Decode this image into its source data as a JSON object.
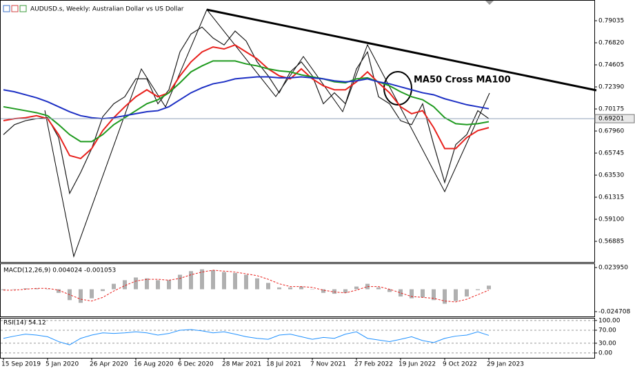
{
  "chart_data": [
    {
      "type": "price",
      "title": "AUDUSD.s, Weekly:  Australian Dollar vs US Dollar",
      "annotation": "MA50 Cross MA100",
      "last_price": 0.69201,
      "categories": [
        "15 Sep 2019",
        null,
        null,
        null,
        "5 Jan 2020",
        null,
        null,
        null,
        "26 Apr 2020",
        null,
        null,
        null,
        "16 Aug 2020",
        null,
        null,
        null,
        "6 Dec 2020",
        null,
        null,
        null,
        "28 Mar 2021",
        null,
        null,
        null,
        "18 Jul 2021",
        null,
        null,
        null,
        "7 Nov 2021",
        null,
        null,
        null,
        "27 Feb 2022",
        null,
        null,
        null,
        "19 Jun 2022",
        null,
        null,
        null,
        "9 Oct 2022",
        null,
        null,
        null,
        "29 Jan 2023"
      ],
      "series": [
        {
          "color": "#1a1a1a",
          "width": 1.2,
          "values": [
            0.676,
            0.686,
            0.69,
            0.692,
            0.693,
            0.673,
            0.617,
            0.638,
            0.662,
            0.694,
            0.707,
            0.714,
            0.732,
            0.732,
            0.707,
            0.721,
            0.759,
            0.777,
            0.784,
            0.773,
            0.766,
            0.78,
            0.77,
            0.749,
            0.735,
            0.718,
            0.739,
            0.749,
            0.735,
            0.707,
            0.718,
            0.707,
            0.742,
            0.759,
            0.714,
            0.707,
            0.69,
            0.686,
            0.707,
            0.666,
            0.628,
            0.666,
            0.676,
            0.7,
            0.692
          ]
        },
        {
          "color": "#e8201c",
          "width": 2,
          "values": [
            0.69,
            0.692,
            0.693,
            0.695,
            0.692,
            0.676,
            0.655,
            0.652,
            0.662,
            0.68,
            0.693,
            0.704,
            0.714,
            0.721,
            0.714,
            0.718,
            0.735,
            0.749,
            0.759,
            0.764,
            0.762,
            0.766,
            0.759,
            0.752,
            0.742,
            0.735,
            0.732,
            0.742,
            0.732,
            0.725,
            0.721,
            0.721,
            0.729,
            0.739,
            0.728,
            0.718,
            0.704,
            0.697,
            0.7,
            0.683,
            0.662,
            0.662,
            0.673,
            0.68,
            0.683
          ]
        },
        {
          "color": "#1e9a1e",
          "width": 2,
          "values": [
            0.704,
            0.702,
            0.7,
            0.698,
            0.695,
            0.686,
            0.676,
            0.669,
            0.669,
            0.676,
            0.686,
            0.693,
            0.7,
            0.707,
            0.711,
            0.718,
            0.728,
            0.739,
            0.745,
            0.75,
            0.75,
            0.75,
            0.747,
            0.745,
            0.742,
            0.74,
            0.739,
            0.736,
            0.734,
            0.732,
            0.729,
            0.728,
            0.732,
            0.733,
            0.729,
            0.725,
            0.719,
            0.714,
            0.711,
            0.704,
            0.693,
            0.687,
            0.686,
            0.687,
            0.689
          ]
        },
        {
          "color": "#1c2fc4",
          "width": 2,
          "values": [
            0.721,
            0.719,
            0.716,
            0.713,
            0.709,
            0.704,
            0.699,
            0.695,
            0.693,
            0.692,
            0.693,
            0.695,
            0.697,
            0.699,
            0.7,
            0.704,
            0.711,
            0.718,
            0.723,
            0.727,
            0.729,
            0.732,
            0.733,
            0.734,
            0.734,
            0.733,
            0.733,
            0.734,
            0.733,
            0.732,
            0.73,
            0.729,
            0.73,
            0.732,
            0.729,
            0.727,
            0.724,
            0.721,
            0.718,
            0.716,
            0.712,
            0.709,
            0.706,
            0.704,
            0.702
          ]
        }
      ],
      "ylim": [
        0.5481,
        0.8077
      ],
      "yticks": [
        0.79035,
        {
          "value": 0.7682,
          "label": "0.76820"
        },
        0.74605,
        {
          "value": 0.7239,
          "label": "0.72390"
        },
        0.70175,
        {
          "value": 0.6796,
          "label": "0.67960"
        },
        0.65745,
        {
          "value": 0.6353,
          "label": "0.63530"
        },
        0.61315,
        {
          "value": 0.591,
          "label": "0.59100"
        },
        0.56885
      ]
    },
    {
      "type": "macd",
      "title": "MACD(12,26,9) 0.004024 -0.001053",
      "series": [
        {
          "color": "#b0b0b0",
          "style": "histogram",
          "values": [
            -0.001,
            0.0,
            0.001,
            0.001,
            0.0,
            -0.004,
            -0.012,
            -0.015,
            -0.01,
            -0.002,
            0.006,
            0.01,
            0.013,
            0.012,
            0.01,
            0.01,
            0.016,
            0.02,
            0.022,
            0.021,
            0.019,
            0.018,
            0.016,
            0.012,
            0.007,
            0.002,
            0.002,
            0.003,
            0.0,
            -0.004,
            -0.005,
            -0.004,
            0.003,
            0.006,
            0.002,
            -0.003,
            -0.008,
            -0.01,
            -0.009,
            -0.012,
            -0.016,
            -0.013,
            -0.008,
            -0.001,
            0.004
          ]
        },
        {
          "color": "#e8201c",
          "style": "dashed",
          "values": [
            -0.001,
            -0.001,
            0.0,
            0.001,
            0.001,
            -0.001,
            -0.006,
            -0.011,
            -0.013,
            -0.009,
            -0.002,
            0.004,
            0.009,
            0.011,
            0.011,
            0.01,
            0.012,
            0.016,
            0.019,
            0.021,
            0.02,
            0.019,
            0.017,
            0.015,
            0.011,
            0.006,
            0.003,
            0.003,
            0.002,
            -0.001,
            -0.003,
            -0.004,
            -0.001,
            0.003,
            0.003,
            0.0,
            -0.004,
            -0.008,
            -0.009,
            -0.01,
            -0.013,
            -0.014,
            -0.011,
            -0.006,
            -0.001
          ]
        }
      ],
      "ylim": [
        -0.0308,
        0.0278
      ],
      "yticks": [
        {
          "value": 0.02395,
          "label": "0.023950"
        },
        {
          "value": -0.024708,
          "label": "-0.024708"
        }
      ]
    },
    {
      "type": "rsi",
      "title": "RSI(14) 54.12",
      "grid": "dashed",
      "series": [
        {
          "color": "#1e90ff",
          "style": "line",
          "values": [
            45,
            52,
            58,
            55,
            50,
            35,
            25,
            45,
            55,
            62,
            60,
            62,
            65,
            62,
            55,
            60,
            70,
            72,
            68,
            62,
            65,
            58,
            50,
            45,
            42,
            55,
            58,
            50,
            42,
            48,
            45,
            58,
            65,
            45,
            40,
            35,
            42,
            50,
            38,
            32,
            45,
            52,
            55,
            65,
            54.12
          ]
        }
      ],
      "ylim": [
        -15,
        106
      ],
      "yticks": [
        {
          "value": 100,
          "label": "100.00"
        },
        {
          "value": 70,
          "label": "70.00"
        },
        {
          "value": 30,
          "label": "30.00"
        },
        {
          "value": 0,
          "label": "0.00"
        }
      ]
    }
  ]
}
